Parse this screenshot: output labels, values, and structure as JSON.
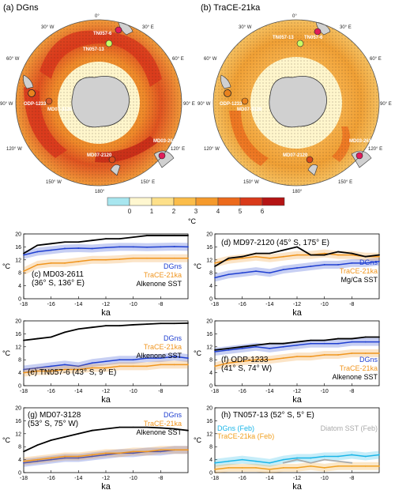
{
  "maps": [
    {
      "title": "(a) DGns",
      "lon_labels": [
        "0°",
        "30° E",
        "60° E",
        "90° E",
        "120° E",
        "150° E",
        "180°",
        "150° W",
        "120° W",
        "90° W",
        "60° W",
        "30° W"
      ],
      "sites": [
        {
          "name": "TN057-6",
          "color": "#e01e5a"
        },
        {
          "name": "TN057-13",
          "color": "#c8ff66"
        },
        {
          "name": "ODP-1233",
          "color": "#e8821e"
        },
        {
          "name": "MD07-3128",
          "color": "#d85a2a"
        },
        {
          "name": "MD07-2120",
          "color": "#d84a1a"
        },
        {
          "name": "MD03-2611",
          "color": "#e01e5a"
        }
      ]
    },
    {
      "title": "(b) TraCE-21ka",
      "lon_labels": [
        "0°",
        "30° E",
        "60° E",
        "90° E",
        "120° E",
        "150° E",
        "180°",
        "150° W",
        "120° W",
        "90° W",
        "60° W",
        "30° W"
      ],
      "sites": [
        {
          "name": "TN057-6",
          "color": "#e01e5a"
        },
        {
          "name": "TN057-13",
          "color": "#c8ff66"
        },
        {
          "name": "ODP-1233",
          "color": "#e8821e"
        },
        {
          "name": "MD07-3128",
          "color": "#e8821e"
        },
        {
          "name": "MD07-2120",
          "color": "#d84a1a"
        },
        {
          "name": "MD03-2611",
          "color": "#e01e5a"
        }
      ]
    }
  ],
  "colorbar": {
    "ticks": [
      "0",
      "1",
      "2",
      "3",
      "4",
      "5",
      "6"
    ],
    "unit": "°C",
    "colors": [
      "#a8e6ef",
      "#fff7d0",
      "#fde08a",
      "#fbbd4a",
      "#f59a2c",
      "#ec6a1c",
      "#d93a1a",
      "#b51414"
    ]
  },
  "chart_data": [
    {
      "type": "line",
      "panel": "(c)",
      "title": "(c) MD03-2611",
      "subtitle": "(36° S, 136° E)",
      "xlabel": "ka",
      "ylabel": "°C",
      "xlim": [
        -18,
        -6
      ],
      "ylim": [
        0,
        20
      ],
      "xticks": [
        "-18",
        "-16",
        "-14",
        "-12",
        "-10",
        "-8"
      ],
      "yticks": [
        "0",
        "4",
        "8",
        "12",
        "16",
        "20"
      ],
      "x": [
        -18,
        -17,
        -16,
        -15,
        -14,
        -13,
        -12,
        -11,
        -10,
        -9,
        -8,
        -7,
        -6
      ],
      "series": [
        {
          "name": "DGns",
          "color": "#1f3fd1",
          "values": [
            13.5,
            14.5,
            15.0,
            15.5,
            15.6,
            15.5,
            15.8,
            16.0,
            16.0,
            15.9,
            16.0,
            16.1,
            16.0
          ]
        },
        {
          "name": "TraCE-21ka",
          "color": "#f0951e",
          "values": [
            8.5,
            10.5,
            11.0,
            11.0,
            11.5,
            12.0,
            12.0,
            12.2,
            12.5,
            12.5,
            12.5,
            12.5,
            12.5
          ]
        },
        {
          "name": "Alkenone SST",
          "color": "#000000",
          "values": [
            14.0,
            16.5,
            17.0,
            17.5,
            17.5,
            18.0,
            18.5,
            18.5,
            19.0,
            19.5,
            19.5,
            19.5,
            19.5
          ]
        }
      ]
    },
    {
      "type": "line",
      "panel": "(d)",
      "title": "(d) MD97-2120 (45° S, 175° E)",
      "xlabel": "ka",
      "ylabel": "°C",
      "xlim": [
        -18,
        -6
      ],
      "ylim": [
        0,
        20
      ],
      "xticks": [
        "-18",
        "-16",
        "-14",
        "-12",
        "-10",
        "-8"
      ],
      "yticks": [
        "0",
        "4",
        "8",
        "12",
        "16",
        "20"
      ],
      "x": [
        -18,
        -17,
        -16,
        -15,
        -14,
        -13,
        -12,
        -11,
        -10,
        -9,
        -8,
        -7,
        -6
      ],
      "series": [
        {
          "name": "DGns",
          "color": "#1f3fd1",
          "values": [
            6.5,
            7.5,
            8.0,
            8.5,
            8.0,
            9.0,
            9.5,
            10.0,
            10.5,
            10.5,
            11.0,
            11.0,
            11.5
          ]
        },
        {
          "name": "TraCE-21ka",
          "color": "#f0951e",
          "values": [
            11.0,
            12.0,
            12.5,
            13.0,
            12.5,
            13.0,
            13.5,
            13.5,
            14.0,
            13.5,
            13.5,
            13.0,
            13.0
          ]
        },
        {
          "name": "Mg/Ca SST",
          "color": "#000000",
          "values": [
            10.0,
            12.5,
            13.0,
            14.0,
            14.0,
            15.0,
            16.0,
            13.5,
            13.5,
            14.5,
            14.0,
            13.0,
            13.5
          ]
        }
      ]
    },
    {
      "type": "line",
      "panel": "(e)",
      "title": "(e) TN057-6 (43° S, 9° E)",
      "xlabel": "ka",
      "ylabel": "°C",
      "xlim": [
        -18,
        -6
      ],
      "ylim": [
        0,
        20
      ],
      "xticks": [
        "-18",
        "-16",
        "-14",
        "-12",
        "-10",
        "-8"
      ],
      "yticks": [
        "0",
        "4",
        "8",
        "12",
        "16",
        "20"
      ],
      "x": [
        -18,
        -17,
        -16,
        -15,
        -14,
        -13,
        -12,
        -11,
        -10,
        -9,
        -8,
        -7,
        -6
      ],
      "series": [
        {
          "name": "DGns",
          "color": "#1f3fd1",
          "values": [
            5.0,
            5.5,
            6.0,
            6.5,
            6.0,
            7.0,
            7.5,
            8.0,
            8.0,
            8.5,
            8.5,
            9.0,
            8.5
          ]
        },
        {
          "name": "TraCE-21ka",
          "color": "#f0951e",
          "values": [
            4.0,
            4.5,
            4.5,
            5.0,
            5.0,
            5.5,
            5.5,
            6.0,
            6.0,
            6.0,
            6.5,
            6.5,
            6.5
          ]
        },
        {
          "name": "Alkenone SST",
          "color": "#000000",
          "values": [
            14.0,
            14.5,
            15.0,
            16.5,
            17.5,
            18.0,
            18.5,
            18.5,
            18.8,
            19.0,
            19.2,
            19.2,
            19.3
          ]
        }
      ]
    },
    {
      "type": "line",
      "panel": "(f)",
      "title": "(f) ODP-1233",
      "subtitle": "(41° S, 74° W)",
      "xlabel": "ka",
      "ylabel": "°C",
      "xlim": [
        -18,
        -6
      ],
      "ylim": [
        0,
        20
      ],
      "xticks": [
        "-18",
        "-16",
        "-14",
        "-12",
        "-10",
        "-8"
      ],
      "yticks": [
        "0",
        "4",
        "8",
        "12",
        "16",
        "20"
      ],
      "x": [
        -18,
        -17,
        -16,
        -15,
        -14,
        -13,
        -12,
        -11,
        -10,
        -9,
        -8,
        -7,
        -6
      ],
      "series": [
        {
          "name": "DGns",
          "color": "#1f3fd1",
          "values": [
            10.5,
            11.0,
            11.5,
            12.0,
            11.5,
            12.0,
            12.5,
            13.0,
            13.0,
            13.0,
            13.5,
            13.5,
            13.5
          ]
        },
        {
          "name": "TraCE-21ka",
          "color": "#f0951e",
          "values": [
            6.0,
            7.0,
            7.5,
            8.0,
            8.0,
            8.5,
            9.0,
            9.0,
            9.5,
            9.5,
            10.0,
            10.0,
            10.0
          ]
        },
        {
          "name": "Alkenone SST",
          "color": "#000000",
          "values": [
            11.0,
            11.5,
            12.0,
            12.5,
            13.0,
            13.0,
            13.5,
            14.0,
            14.0,
            14.5,
            14.5,
            15.0,
            15.0
          ]
        }
      ]
    },
    {
      "type": "line",
      "panel": "(g)",
      "title": "(g) MD07-3128",
      "subtitle": "(53° S, 75° W)",
      "xlabel": "ka",
      "ylabel": "°C",
      "xlim": [
        -18,
        -6
      ],
      "ylim": [
        0,
        20
      ],
      "xticks": [
        "-18",
        "-16",
        "-14",
        "-12",
        "-10",
        "-8"
      ],
      "yticks": [
        "0",
        "4",
        "8",
        "12",
        "16",
        "20"
      ],
      "x": [
        -18,
        -17,
        -16,
        -15,
        -14,
        -13,
        -12,
        -11,
        -10,
        -9,
        -8,
        -7,
        -6
      ],
      "series": [
        {
          "name": "DGns",
          "color": "#1f3fd1",
          "values": [
            3.0,
            3.5,
            4.0,
            4.5,
            4.5,
            5.0,
            5.5,
            6.0,
            6.0,
            6.5,
            6.5,
            7.0,
            7.0
          ]
        },
        {
          "name": "TraCE-21ka",
          "color": "#f0951e",
          "values": [
            3.5,
            4.0,
            4.5,
            5.0,
            5.0,
            5.5,
            6.0,
            6.0,
            6.5,
            6.5,
            7.0,
            7.0,
            7.0
          ]
        },
        {
          "name": "Alkenone SST",
          "color": "#000000",
          "values": [
            6.5,
            8.5,
            10.0,
            11.0,
            12.0,
            13.0,
            13.5,
            14.0,
            14.0,
            14.0,
            13.8,
            13.5,
            13.0
          ]
        }
      ]
    },
    {
      "type": "line",
      "panel": "(h)",
      "title": "(h) TN057-13 (52° S, 5° E)",
      "xlabel": "ka",
      "ylabel": "°C",
      "xlim": [
        -18,
        -6
      ],
      "ylim": [
        0,
        20
      ],
      "xticks": [
        "-18",
        "-16",
        "-14",
        "-12",
        "-10",
        "-8"
      ],
      "yticks": [
        "0",
        "4",
        "8",
        "12",
        "16",
        "20"
      ],
      "x": [
        -18,
        -17,
        -16,
        -15,
        -14,
        -13,
        -12,
        -11,
        -10,
        -9,
        -8,
        -7,
        -6
      ],
      "series": [
        {
          "name": "DGns (Feb)",
          "color": "#1ab6e8",
          "values": [
            3.0,
            3.5,
            4.0,
            3.5,
            3.0,
            4.0,
            4.5,
            4.5,
            5.0,
            5.0,
            5.5,
            5.0,
            5.5
          ]
        },
        {
          "name": "TraCE-21ka (Feb)",
          "color": "#f0a020",
          "values": [
            1.0,
            1.5,
            1.5,
            1.5,
            1.0,
            1.5,
            1.5,
            2.0,
            1.5,
            2.0,
            2.0,
            2.0,
            2.0
          ]
        },
        {
          "name": "Diatom SST (Feb)",
          "color": "#aaaaaa",
          "values": [
            null,
            null,
            null,
            null,
            null,
            3.0,
            4.0,
            3.0,
            4.0,
            3.5,
            3.0,
            null,
            null
          ]
        }
      ]
    }
  ]
}
